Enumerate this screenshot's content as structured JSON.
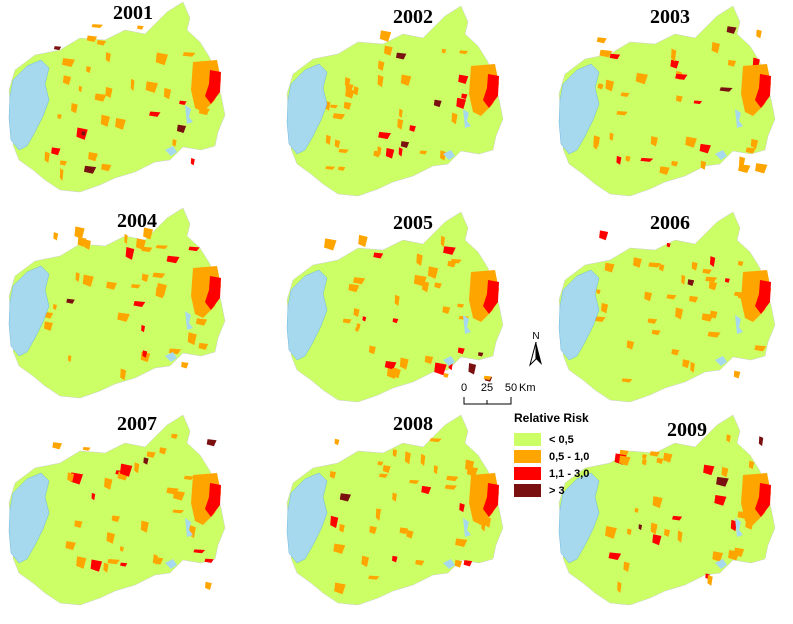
{
  "panels": [
    {
      "year": "2001"
    },
    {
      "year": "2002"
    },
    {
      "year": "2003"
    },
    {
      "year": "2004"
    },
    {
      "year": "2005"
    },
    {
      "year": "2006"
    },
    {
      "year": "2007"
    },
    {
      "year": "2008"
    },
    {
      "year": "2009"
    }
  ],
  "legend": {
    "title": "Relative Risk",
    "classes": [
      {
        "label": "<  0,5",
        "color": "#ccff66"
      },
      {
        "label": "0,5  - 1,0",
        "color": "#ffa500"
      },
      {
        "label": "1,1 - 3,0",
        "color": "#ff0000"
      },
      {
        "label": ">  3",
        "color": "#7b1010"
      }
    ]
  },
  "scale": {
    "ticks": [
      "0",
      "25",
      "50"
    ],
    "unit": "Km"
  },
  "north_label": "N",
  "colors": {
    "land": "#ccff66",
    "water": "#a6d8ee",
    "moderate": "#ffa500",
    "high": "#ff0000",
    "very_high": "#7b1010"
  }
}
